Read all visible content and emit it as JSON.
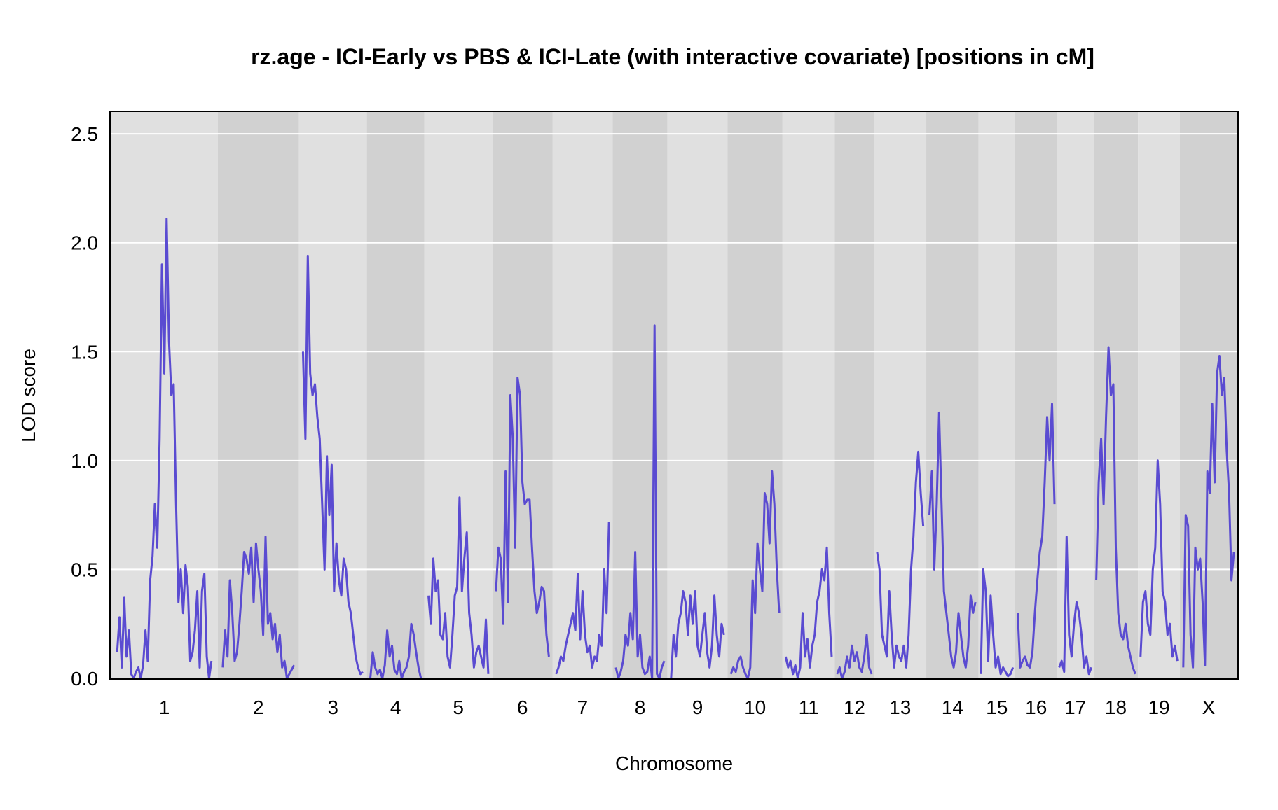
{
  "chart_data": {
    "type": "line",
    "title": "rz.age - ICI-Early vs PBS & ICI-Late (with interactive covariate) [positions in cM]",
    "xlabel": "Chromosome",
    "ylabel": "LOD score",
    "ylim": [
      0,
      2.6
    ],
    "yticks": [
      "0.0",
      "0.5",
      "1.0",
      "1.5",
      "2.0",
      "2.5"
    ],
    "ytick_values": [
      0,
      0.5,
      1.0,
      1.5,
      2.0,
      2.5
    ],
    "grid": "horizontal",
    "line_color": "#5a4bd1",
    "band_colors": [
      "#e0e0e0",
      "#d1d1d1"
    ],
    "chromosomes": [
      {
        "label": "1",
        "values": [
          0.12,
          0.28,
          0.05,
          0.37,
          0.1,
          0.22,
          0.02,
          0.0,
          0.03,
          0.05,
          0.0,
          0.06,
          0.22,
          0.08,
          0.45,
          0.56,
          0.8,
          0.6,
          1.1,
          1.9,
          1.4,
          2.11,
          1.55,
          1.3,
          1.35,
          0.8,
          0.35,
          0.5,
          0.3,
          0.52,
          0.42,
          0.08,
          0.12,
          0.22,
          0.4,
          0.05,
          0.4,
          0.48,
          0.1,
          0.0,
          0.08
        ]
      },
      {
        "label": "2",
        "values": [
          0.05,
          0.22,
          0.1,
          0.45,
          0.3,
          0.08,
          0.12,
          0.25,
          0.4,
          0.58,
          0.55,
          0.48,
          0.6,
          0.35,
          0.62,
          0.5,
          0.4,
          0.2,
          0.65,
          0.25,
          0.3,
          0.18,
          0.25,
          0.12,
          0.2,
          0.05,
          0.08,
          0.0,
          0.02,
          0.04,
          0.06
        ]
      },
      {
        "label": "3",
        "values": [
          1.5,
          1.1,
          1.94,
          1.4,
          1.3,
          1.35,
          1.2,
          1.1,
          0.8,
          0.5,
          1.02,
          0.75,
          0.98,
          0.4,
          0.62,
          0.45,
          0.38,
          0.55,
          0.5,
          0.35,
          0.3,
          0.2,
          0.1,
          0.05,
          0.02,
          0.03
        ]
      },
      {
        "label": "4",
        "values": [
          0.0,
          0.12,
          0.05,
          0.02,
          0.04,
          0.0,
          0.06,
          0.22,
          0.1,
          0.15,
          0.04,
          0.02,
          0.08,
          0.0,
          0.03,
          0.05,
          0.1,
          0.25,
          0.2,
          0.12,
          0.05,
          0.0
        ]
      },
      {
        "label": "5",
        "values": [
          0.38,
          0.25,
          0.55,
          0.4,
          0.45,
          0.2,
          0.18,
          0.3,
          0.1,
          0.05,
          0.2,
          0.38,
          0.42,
          0.83,
          0.4,
          0.55,
          0.67,
          0.3,
          0.2,
          0.05,
          0.12,
          0.15,
          0.1,
          0.05,
          0.27,
          0.02
        ]
      },
      {
        "label": "6",
        "values": [
          0.4,
          0.6,
          0.55,
          0.25,
          0.95,
          0.35,
          1.3,
          1.1,
          0.6,
          1.38,
          1.3,
          0.9,
          0.8,
          0.82,
          0.82,
          0.6,
          0.4,
          0.3,
          0.35,
          0.42,
          0.4,
          0.2,
          0.1
        ]
      },
      {
        "label": "7",
        "values": [
          0.02,
          0.05,
          0.1,
          0.08,
          0.15,
          0.2,
          0.25,
          0.3,
          0.22,
          0.48,
          0.18,
          0.4,
          0.2,
          0.12,
          0.15,
          0.05,
          0.1,
          0.08,
          0.2,
          0.15,
          0.5,
          0.3,
          0.72
        ]
      },
      {
        "label": "8",
        "values": [
          0.05,
          0.0,
          0.03,
          0.08,
          0.2,
          0.15,
          0.3,
          0.18,
          0.58,
          0.1,
          0.2,
          0.05,
          0.02,
          0.03,
          0.1,
          0.0,
          1.62,
          0.02,
          0.0,
          0.05,
          0.08
        ]
      },
      {
        "label": "9",
        "values": [
          0.0,
          0.2,
          0.1,
          0.25,
          0.3,
          0.4,
          0.35,
          0.2,
          0.38,
          0.25,
          0.4,
          0.15,
          0.1,
          0.2,
          0.3,
          0.12,
          0.05,
          0.15,
          0.38,
          0.2,
          0.1,
          0.25,
          0.2
        ]
      },
      {
        "label": "10",
        "values": [
          0.02,
          0.05,
          0.03,
          0.08,
          0.1,
          0.05,
          0.02,
          0.0,
          0.05,
          0.45,
          0.3,
          0.62,
          0.5,
          0.4,
          0.85,
          0.8,
          0.62,
          0.95,
          0.8,
          0.5,
          0.3
        ]
      },
      {
        "label": "11",
        "values": [
          0.1,
          0.05,
          0.08,
          0.02,
          0.06,
          0.0,
          0.05,
          0.3,
          0.1,
          0.18,
          0.05,
          0.15,
          0.2,
          0.35,
          0.4,
          0.5,
          0.45,
          0.6,
          0.3,
          0.1
        ]
      },
      {
        "label": "12",
        "values": [
          0.02,
          0.05,
          0.0,
          0.03,
          0.1,
          0.05,
          0.15,
          0.08,
          0.12,
          0.05,
          0.03,
          0.1,
          0.2,
          0.05,
          0.02
        ]
      },
      {
        "label": "13",
        "values": [
          0.58,
          0.5,
          0.2,
          0.15,
          0.1,
          0.4,
          0.2,
          0.05,
          0.15,
          0.1,
          0.08,
          0.15,
          0.05,
          0.2,
          0.5,
          0.65,
          0.9,
          1.04,
          0.85,
          0.7
        ]
      },
      {
        "label": "14",
        "values": [
          0.75,
          0.95,
          0.5,
          0.8,
          1.22,
          0.8,
          0.4,
          0.3,
          0.2,
          0.1,
          0.05,
          0.12,
          0.3,
          0.2,
          0.1,
          0.05,
          0.15,
          0.38,
          0.3,
          0.35
        ]
      },
      {
        "label": "15",
        "values": [
          0.02,
          0.5,
          0.4,
          0.08,
          0.38,
          0.2,
          0.05,
          0.1,
          0.02,
          0.05,
          0.03,
          0.01,
          0.02,
          0.05
        ]
      },
      {
        "label": "16",
        "values": [
          0.3,
          0.05,
          0.08,
          0.1,
          0.06,
          0.05,
          0.12,
          0.3,
          0.45,
          0.58,
          0.65,
          0.9,
          1.2,
          1.0,
          1.26,
          0.8
        ]
      },
      {
        "label": "17",
        "values": [
          0.05,
          0.08,
          0.03,
          0.65,
          0.2,
          0.1,
          0.25,
          0.35,
          0.3,
          0.2,
          0.05,
          0.1,
          0.02,
          0.05
        ]
      },
      {
        "label": "18",
        "values": [
          0.45,
          0.9,
          1.1,
          0.8,
          1.2,
          1.52,
          1.3,
          1.35,
          0.6,
          0.3,
          0.2,
          0.18,
          0.25,
          0.15,
          0.1,
          0.05,
          0.02
        ]
      },
      {
        "label": "19",
        "values": [
          0.1,
          0.35,
          0.4,
          0.25,
          0.2,
          0.5,
          0.6,
          1.0,
          0.8,
          0.4,
          0.35,
          0.2,
          0.25,
          0.1,
          0.15,
          0.08
        ]
      },
      {
        "label": "X",
        "values": [
          0.05,
          0.75,
          0.7,
          0.2,
          0.05,
          0.6,
          0.5,
          0.55,
          0.35,
          0.06,
          0.95,
          0.85,
          1.26,
          0.9,
          1.4,
          1.48,
          1.3,
          1.38,
          1.05,
          0.85,
          0.45,
          0.58
        ]
      }
    ]
  }
}
